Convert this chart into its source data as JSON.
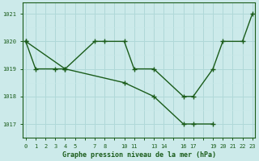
{
  "line1_x": [
    0,
    1,
    3,
    4,
    7,
    8,
    10,
    11,
    13,
    16,
    17,
    19,
    20,
    22,
    23
  ],
  "line1_y": [
    1020,
    1019,
    1019,
    1019,
    1020,
    1020,
    1020,
    1019,
    1019,
    1018,
    1018,
    1019,
    1020,
    1020,
    1021
  ],
  "line2_x": [
    0,
    4,
    10,
    13,
    16,
    17,
    19
  ],
  "line2_y": [
    1020,
    1019,
    1018.5,
    1018,
    1017,
    1017,
    1017
  ],
  "line_color": "#1a5c1a",
  "bg_color": "#cceaea",
  "grid_major_color": "#b0d8d8",
  "grid_minor_color": "#c8e8e8",
  "xlabel": "Graphe pression niveau de la mer (hPa)",
  "yticks": [
    1017,
    1018,
    1019,
    1020,
    1021
  ],
  "xtick_show": [
    0,
    1,
    2,
    3,
    4,
    5,
    7,
    8,
    10,
    11,
    13,
    14,
    16,
    17,
    19,
    20,
    21,
    22,
    23
  ],
  "xlim": [
    -0.3,
    23.3
  ],
  "ylim": [
    1016.5,
    1021.4
  ]
}
